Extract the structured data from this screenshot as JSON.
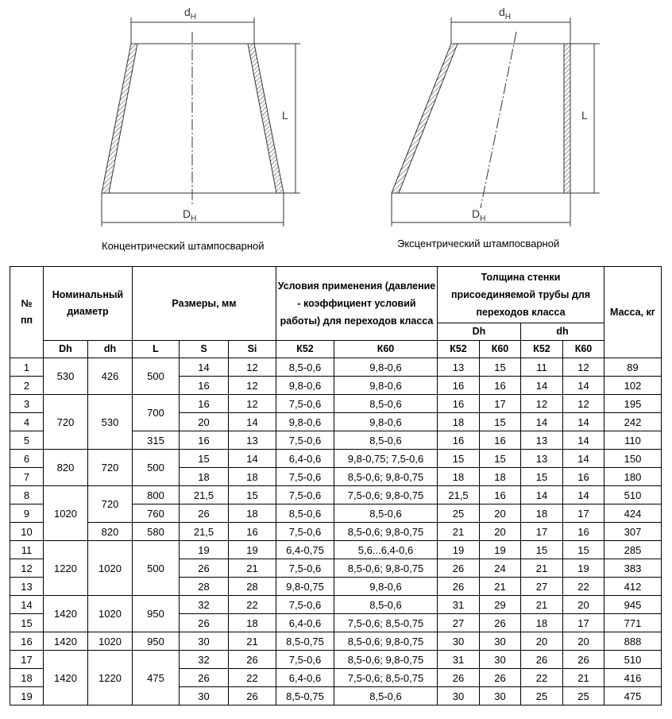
{
  "drawings": {
    "concentric": {
      "top_label": "d",
      "top_sub": "Н",
      "bottom_label": "D",
      "bottom_sub": "Н",
      "side_label": "L",
      "caption": "Концентрический штампосварной"
    },
    "eccentric": {
      "top_label": "d",
      "top_sub": "Н",
      "bottom_label": "D",
      "bottom_sub": "Н",
      "side_label": "L",
      "caption": "Эксцентрический штампосварной"
    }
  },
  "table": {
    "headers": {
      "num": "№ пп",
      "nominal": "Номинальный диаметр",
      "sizes": "Размеры, мм",
      "conditions": "Условия применения (давление - коэффициент условий работы) для переходов класса",
      "thickness": "Толщина стенки присоединяемой трубы для переходов класса",
      "mass": "Масса, кг",
      "Dh_group": "Dh",
      "dh_group": "dh",
      "sub": [
        "Dh",
        "dh",
        "L",
        "S",
        "Si",
        "К52",
        "К60",
        "К52",
        "К60",
        "К52",
        "К60"
      ]
    },
    "rows": [
      [
        "1",
        "530",
        "426",
        "500",
        "14",
        "12",
        "8,5-0,6",
        "9,8-0,6",
        "13",
        "15",
        "11",
        "12",
        "89"
      ],
      [
        "2",
        "530",
        "426",
        "500",
        "16",
        "12",
        "9,8-0,6",
        "9,8-0,6",
        "16",
        "16",
        "14",
        "14",
        "102"
      ],
      [
        "3",
        "720",
        "530",
        "700",
        "16",
        "12",
        "7,5-0,6",
        "8,5-0,6",
        "16",
        "17",
        "12",
        "12",
        "195"
      ],
      [
        "4",
        "720",
        "530",
        "700",
        "20",
        "14",
        "9,8-0,6",
        "9,8-0,6",
        "18",
        "15",
        "14",
        "14",
        "242"
      ],
      [
        "5",
        "720",
        "530",
        "315",
        "16",
        "13",
        "7,5-0,6",
        "8,5-0,6",
        "16",
        "16",
        "13",
        "14",
        "110"
      ],
      [
        "6",
        "820",
        "720",
        "500",
        "15",
        "14",
        "6,4-0,6",
        "9,8-0,75; 7,5-0,6",
        "15",
        "15",
        "13",
        "14",
        "150"
      ],
      [
        "7",
        "820",
        "720",
        "500",
        "18",
        "18",
        "7,5-0,6",
        "8,5-0,6; 9,8-0,75",
        "18",
        "18",
        "15",
        "16",
        "180"
      ],
      [
        "8",
        "1020",
        "720",
        "800",
        "21,5",
        "15",
        "7,5-0,6",
        "7,5-0,6; 9,8-0,75",
        "21,5",
        "16",
        "14",
        "14",
        "510"
      ],
      [
        "9",
        "1020",
        "720",
        "760",
        "26",
        "18",
        "8,5-0,6",
        "8,5-0,6",
        "25",
        "20",
        "18",
        "17",
        "424"
      ],
      [
        "10",
        "1020",
        "820",
        "580",
        "21,5",
        "16",
        "7,5-0,6",
        "8,5-0,6; 9,8-0,75",
        "21",
        "20",
        "17",
        "16",
        "307"
      ],
      [
        "11",
        "1220",
        "1020",
        "500",
        "19",
        "19",
        "6,4-0,75",
        "5,6...6,4-0,6",
        "19",
        "19",
        "15",
        "15",
        "285"
      ],
      [
        "12",
        "1220",
        "1020",
        "500",
        "26",
        "21",
        "7,5-0,6",
        "8,5-0,6; 9,8-0,75",
        "26",
        "24",
        "21",
        "19",
        "383"
      ],
      [
        "13",
        "1220",
        "1020",
        "500",
        "28",
        "28",
        "9,8-0,75",
        "9,8-0,6",
        "26",
        "21",
        "27",
        "22",
        "412"
      ],
      [
        "14",
        "1420",
        "1020",
        "950",
        "32",
        "22",
        "7,5-0,6",
        "8,5-0,6",
        "31",
        "29",
        "21",
        "20",
        "945"
      ],
      [
        "15",
        "1420",
        "1020",
        "950",
        "26",
        "18",
        "6,4-0,6",
        "7,5-0,6; 8,5-0,75",
        "27",
        "26",
        "18",
        "17",
        "771"
      ],
      [
        "16",
        "1420",
        "1020",
        "950",
        "30",
        "21",
        "8,5-0,75",
        "8,5-0,6; 9,8-0,75",
        "30",
        "30",
        "20",
        "20",
        "888"
      ],
      [
        "17",
        "1420",
        "1220",
        "475",
        "32",
        "26",
        "7,5-0,6",
        "8,5-0,6; 9,8-0,75",
        "31",
        "30",
        "26",
        "26",
        "510"
      ],
      [
        "18",
        "1420",
        "1220",
        "475",
        "26",
        "22",
        "6,4-0,6",
        "7,5-0,6; 8,5-0,75",
        "26",
        "26",
        "22",
        "21",
        "416"
      ],
      [
        "19",
        "1420",
        "1220",
        "475",
        "30",
        "26",
        "8,5-0,75",
        "8,5-0,6",
        "30",
        "30",
        "25",
        "25",
        "475"
      ]
    ]
  }
}
